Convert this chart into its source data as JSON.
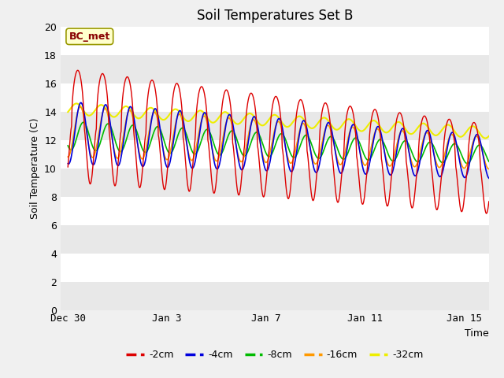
{
  "title": "Soil Temperatures Set B",
  "xlabel": "Time",
  "ylabel": "Soil Temperature (C)",
  "ylim": [
    0,
    20
  ],
  "yticks": [
    0,
    2,
    4,
    6,
    8,
    10,
    12,
    14,
    16,
    18,
    20
  ],
  "xlim_start": -0.3,
  "xlim_end": 17.0,
  "xtick_positions": [
    0,
    4,
    8,
    12,
    16
  ],
  "xtick_labels": [
    "Dec 30",
    "Jan 3",
    "Jan 7",
    "Jan 11",
    "Jan 15"
  ],
  "colors": {
    "-2cm": "#dd0000",
    "-4cm": "#0000dd",
    "-8cm": "#00bb00",
    "-16cm": "#ff9900",
    "-32cm": "#eeee00"
  },
  "legend_labels": [
    "-2cm",
    "-4cm",
    "-8cm",
    "-16cm",
    "-32cm"
  ],
  "annotation_text": "BC_met",
  "annotation_bbox_facecolor": "#ffffcc",
  "annotation_bbox_edgecolor": "#999900",
  "annotation_text_color": "#880000",
  "bg_color": "#f0f0f0",
  "plot_bg_color": "#ffffff",
  "band_color": "#e8e8e8",
  "title_fontsize": 12,
  "label_fontsize": 9,
  "tick_fontsize": 9
}
